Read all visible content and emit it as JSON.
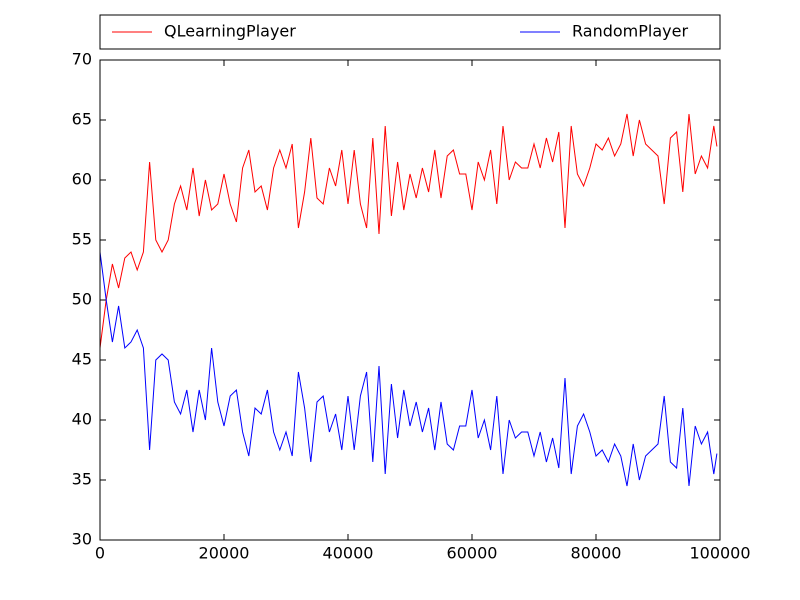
{
  "chart_data": {
    "type": "line",
    "x": [
      0,
      1000,
      2000,
      3000,
      4000,
      5000,
      6000,
      7000,
      8000,
      9000,
      10000,
      11000,
      12000,
      13000,
      14000,
      15000,
      16000,
      17000,
      18000,
      19000,
      20000,
      21000,
      22000,
      23000,
      24000,
      25000,
      26000,
      27000,
      28000,
      29000,
      30000,
      31000,
      32000,
      33000,
      34000,
      35000,
      36000,
      37000,
      38000,
      39000,
      40000,
      41000,
      42000,
      43000,
      44000,
      45000,
      46000,
      47000,
      48000,
      49000,
      50000,
      51000,
      52000,
      53000,
      54000,
      55000,
      56000,
      57000,
      58000,
      59000,
      60000,
      61000,
      62000,
      63000,
      64000,
      65000,
      66000,
      67000,
      68000,
      69000,
      70000,
      71000,
      72000,
      73000,
      74000,
      75000,
      76000,
      77000,
      78000,
      79000,
      80000,
      81000,
      82000,
      83000,
      84000,
      85000,
      86000,
      87000,
      88000,
      89000,
      90000,
      91000,
      92000,
      93000,
      94000,
      95000,
      96000,
      97000,
      98000,
      99000,
      99500
    ],
    "series": [
      {
        "name": "QLearningPlayer",
        "color": "#ff0000",
        "values": [
          46,
          50,
          53,
          51,
          53.5,
          54,
          52.5,
          54,
          61.5,
          55,
          54,
          55,
          58,
          59.5,
          57.5,
          61,
          57,
          60,
          57.5,
          58,
          60.5,
          58,
          56.5,
          61,
          62.5,
          59,
          59.5,
          57.5,
          61,
          62.5,
          61,
          63,
          56,
          59,
          63.5,
          58.5,
          58,
          61,
          59.5,
          62.5,
          58,
          62.5,
          58,
          56,
          63.5,
          55.5,
          64.5,
          57,
          61.5,
          57.5,
          60.5,
          58.5,
          61,
          59,
          62.5,
          58.5,
          62,
          62.5,
          60.5,
          60.5,
          57.5,
          61.5,
          60,
          62.5,
          58,
          64.5,
          60,
          61.5,
          61,
          61,
          63,
          61,
          63.5,
          61.5,
          64,
          56,
          64.5,
          60.5,
          59.5,
          61,
          63,
          62.5,
          63.5,
          62,
          63,
          65.5,
          62,
          65,
          63,
          62.5,
          62,
          58,
          63.5,
          64,
          59,
          65.5,
          60.5,
          62,
          61,
          64.5,
          62.8
        ]
      },
      {
        "name": "RandomPlayer",
        "color": "#0000ff",
        "values": [
          54,
          50,
          46.5,
          49.5,
          46,
          46.5,
          47.5,
          46,
          37.5,
          45,
          45.5,
          45,
          41.5,
          40.5,
          42.5,
          39,
          42.5,
          40,
          46,
          41.5,
          39.5,
          42,
          42.5,
          39,
          37,
          41,
          40.5,
          42.5,
          39,
          37.5,
          39,
          37,
          44,
          41,
          36.5,
          41.5,
          42,
          39,
          40.5,
          37.5,
          42,
          37.5,
          42,
          44,
          36.5,
          44.5,
          35.5,
          43,
          38.5,
          42.5,
          39.5,
          41.5,
          39,
          41,
          37.5,
          41.5,
          38,
          37.5,
          39.5,
          39.5,
          42.5,
          38.5,
          40,
          37.5,
          42,
          35.5,
          40,
          38.5,
          39,
          39,
          37,
          39,
          36.5,
          38.5,
          36,
          43.5,
          35.5,
          39.5,
          40.5,
          39,
          37,
          37.5,
          36.5,
          38,
          37,
          34.5,
          38,
          35,
          37,
          37.5,
          38,
          42,
          36.5,
          36,
          41,
          34.5,
          39.5,
          38,
          39,
          35.5,
          37.2
        ]
      }
    ],
    "xlim": [
      0,
      100000
    ],
    "xticks": [
      0,
      20000,
      40000,
      60000,
      80000,
      100000
    ],
    "ylim": [
      30,
      70
    ],
    "yticks": [
      30,
      35,
      40,
      45,
      50,
      55,
      60,
      65,
      70
    ],
    "legend": "top"
  }
}
